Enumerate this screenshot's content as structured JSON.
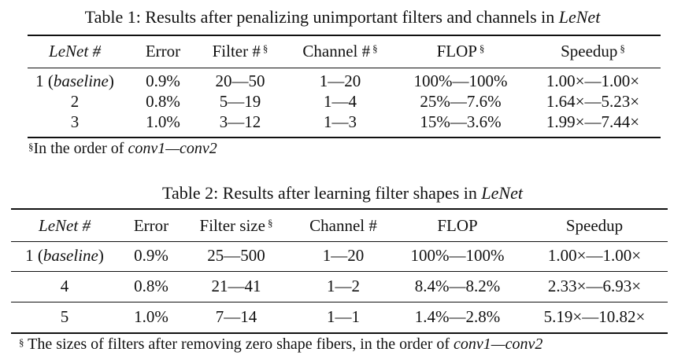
{
  "table1": {
    "caption_prefix": "Table 1: Results after penalizing unimportant filters and channels in ",
    "caption_em": "LeNet",
    "headers": [
      {
        "label": "LeNet #",
        "italic": true,
        "sup": ""
      },
      {
        "label": "Error",
        "italic": false,
        "sup": ""
      },
      {
        "label": "Filter #",
        "italic": false,
        "sup": "§"
      },
      {
        "label": "Channel #",
        "italic": false,
        "sup": "§"
      },
      {
        "label": "FLOP",
        "italic": false,
        "sup": "§"
      },
      {
        "label": "Speedup",
        "italic": false,
        "sup": "§"
      }
    ],
    "rows": [
      {
        "lenet": "1 (",
        "lenet_em": "baseline",
        "lenet_end": ")",
        "error": "0.9%",
        "filter": "20—50",
        "channel": "1—20",
        "flop": "100%—100%",
        "speedup": "1.00×—1.00×"
      },
      {
        "lenet": "2",
        "lenet_em": "",
        "lenet_end": "",
        "error": "0.8%",
        "filter": "5—19",
        "channel": "1—4",
        "flop": "25%—7.6%",
        "speedup": "1.64×—5.23×"
      },
      {
        "lenet": "3",
        "lenet_em": "",
        "lenet_end": "",
        "error": "1.0%",
        "filter": "3—12",
        "channel": "1—3",
        "flop": "15%—3.6%",
        "speedup": "1.99×—7.44×"
      }
    ],
    "footnote_mark": "§",
    "footnote_text": "In the order of ",
    "footnote_em": "conv1—conv2"
  },
  "table2": {
    "caption_prefix": "Table 2: Results after learning filter shapes in ",
    "caption_em": "LeNet",
    "headers": [
      {
        "label": "LeNet #",
        "italic": true,
        "sup": ""
      },
      {
        "label": "Error",
        "italic": false,
        "sup": ""
      },
      {
        "label": "Filter size",
        "italic": false,
        "sup": "§"
      },
      {
        "label": "Channel #",
        "italic": false,
        "sup": ""
      },
      {
        "label": "FLOP",
        "italic": false,
        "sup": ""
      },
      {
        "label": "Speedup",
        "italic": false,
        "sup": ""
      }
    ],
    "rows": [
      {
        "lenet": "1 (",
        "lenet_em": "baseline",
        "lenet_end": ")",
        "error": "0.9%",
        "filter": "25—500",
        "channel": "1—20",
        "flop": "100%—100%",
        "speedup": "1.00×—1.00×"
      },
      {
        "lenet": "4",
        "lenet_em": "",
        "lenet_end": "",
        "error": "0.8%",
        "filter": "21—41",
        "channel": "1—2",
        "flop": "8.4%—8.2%",
        "speedup": "2.33×—6.93×"
      },
      {
        "lenet": "5",
        "lenet_em": "",
        "lenet_end": "",
        "error": "1.0%",
        "filter": "7—14",
        "channel": "1—1",
        "flop": "1.4%—2.8%",
        "speedup": "5.19×—10.82×"
      }
    ],
    "footnote_mark": "§",
    "footnote_text": " The sizes of filters after removing zero shape fibers, in the order of ",
    "footnote_em": "conv1—conv2"
  }
}
